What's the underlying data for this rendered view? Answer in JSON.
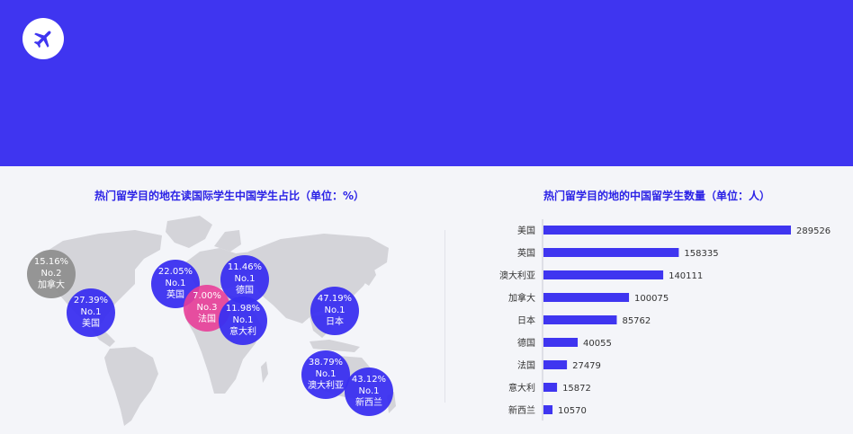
{
  "header": {
    "logo_icon": "airplane-icon",
    "background_color": "#3f35f0"
  },
  "chart_data": [
    {
      "type": "bubble-map",
      "title": "热门留学目的地在读国际学生中国学生占比（单位：%）",
      "colors": {
        "rank1": "#3a2ff0",
        "rank2": "#8f8f8f",
        "rank3": "#e83e98",
        "map": "#d4d4d9"
      },
      "bubbles": [
        {
          "percent": "15.16%",
          "rank": "No.2",
          "country": "加拿大"
        },
        {
          "percent": "27.39%",
          "rank": "No.1",
          "country": "美国"
        },
        {
          "percent": "22.05%",
          "rank": "No.1",
          "country": "英国"
        },
        {
          "percent": "11.46%",
          "rank": "No.1",
          "country": "德国"
        },
        {
          "percent": "7.00%",
          "rank": "No.3",
          "country": "法国"
        },
        {
          "percent": "11.98%",
          "rank": "No.1",
          "country": "意大利"
        },
        {
          "percent": "47.19%",
          "rank": "No.1",
          "country": "日本"
        },
        {
          "percent": "38.79%",
          "rank": "No.1",
          "country": "澳大利亚"
        },
        {
          "percent": "43.12%",
          "rank": "No.1",
          "country": "新西兰"
        }
      ]
    },
    {
      "type": "bar",
      "orientation": "horizontal",
      "title": "热门留学目的地的中国留学生数量（单位：人）",
      "bar_color": "#3f35f0",
      "categories": [
        "美国",
        "英国",
        "澳大利亚",
        "加拿大",
        "日本",
        "德国",
        "法国",
        "意大利",
        "新西兰"
      ],
      "values": [
        289526,
        158335,
        140111,
        100075,
        85762,
        40055,
        27479,
        15872,
        10570
      ]
    }
  ]
}
